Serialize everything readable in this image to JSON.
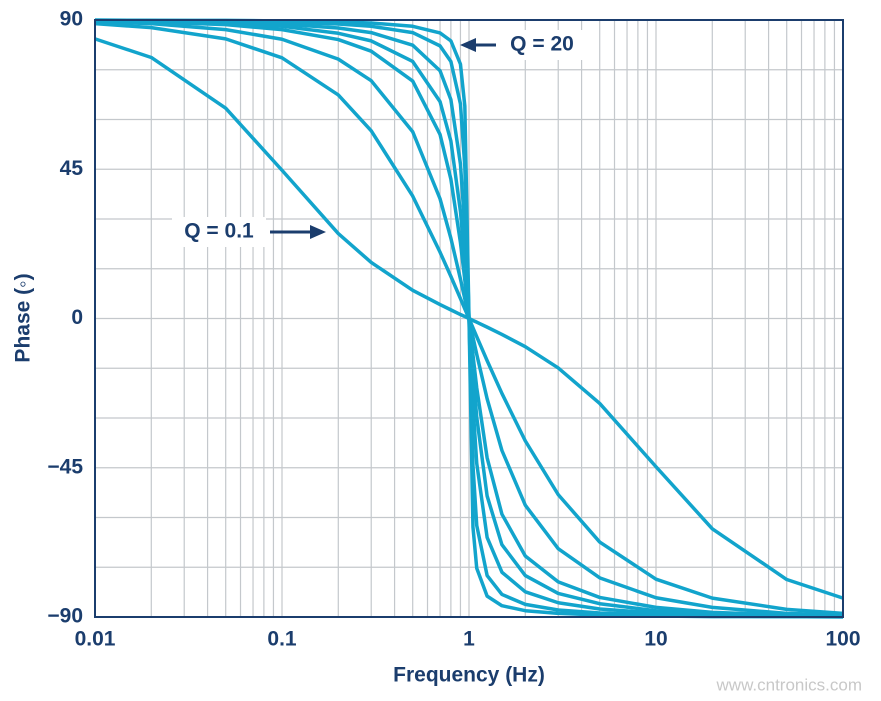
{
  "chart_data": {
    "type": "line",
    "xlabel": "Frequency (Hz)",
    "ylabel": "Phase (◦)",
    "log_x": true,
    "grid": true,
    "color": "#12a4cc",
    "x": [
      0.01,
      0.02,
      0.05,
      0.1,
      0.2,
      0.3,
      0.5,
      0.7,
      0.8,
      0.9,
      0.95,
      1,
      1.05,
      1.1,
      1.25,
      1.5,
      2,
      3,
      5,
      10,
      20,
      50,
      100
    ],
    "series": [
      {
        "color": "#12a4cc",
        "values": [
          84.3,
          78.7,
          63.4,
          44.7,
          25.6,
          16.9,
          8.5,
          4.2,
          2.6,
          1.2,
          0.6,
          0,
          -0.6,
          -1.1,
          -2.6,
          -4.8,
          -8.5,
          -14.9,
          -25.6,
          -44.7,
          -63.4,
          -78.7,
          -84.3
        ]
      },
      {
        "color": "#12a4cc",
        "values": [
          88.9,
          87.7,
          84.3,
          78.6,
          67.4,
          56.6,
          36.9,
          20.0,
          12.7,
          6.0,
          2.9,
          0,
          -2.8,
          -5.5,
          -12.7,
          -22.6,
          -36.9,
          -53.1,
          -67.4,
          -78.6,
          -84.3,
          -87.7,
          -88.9
        ]
      },
      {
        "color": "#12a4cc",
        "values": [
          89.4,
          88.9,
          87.1,
          84.2,
          78.2,
          71.7,
          56.3,
          36.1,
          24.2,
          11.9,
          5.9,
          0,
          -5.6,
          -10.8,
          -24.2,
          -39.8,
          -56.3,
          -69.4,
          -78.2,
          -84.2,
          -87.1,
          -88.9,
          -89.4
        ]
      },
      {
        "color": "#12a4cc",
        "values": [
          89.7,
          89.4,
          88.6,
          87.1,
          84.1,
          80.6,
          71.6,
          55.5,
          42.0,
          22.9,
          11.6,
          0,
          -11.0,
          -20.9,
          -42.0,
          -59.0,
          -71.6,
          -79.4,
          -84.1,
          -87.1,
          -88.6,
          -89.4,
          -89.7
        ]
      },
      {
        "color": "#12a4cc",
        "values": [
          89.8,
          89.6,
          89.0,
          88.1,
          86.0,
          83.7,
          77.5,
          65.4,
          53.5,
          32.3,
          17.1,
          0,
          -16.3,
          -29.8,
          -53.5,
          -68.2,
          -77.5,
          -82.9,
          -86.0,
          -88.1,
          -89.0,
          -89.6,
          -89.8
        ]
      },
      {
        "color": "#12a4cc",
        "values": [
          89.9,
          89.8,
          89.4,
          88.8,
          87.6,
          86.2,
          82.4,
          74.7,
          66.0,
          46.6,
          27.2,
          0,
          -26.0,
          -43.7,
          -66.0,
          -76.5,
          -82.4,
          -85.7,
          -87.6,
          -88.8,
          -89.4,
          -89.8,
          -89.9
        ]
      },
      {
        "color": "#12a4cc",
        "values": [
          89.9,
          89.9,
          89.7,
          89.4,
          88.8,
          88.1,
          86.2,
          82.2,
          77.5,
          64.7,
          45.7,
          0,
          -44.3,
          -62.4,
          -77.5,
          -83.2,
          -86.2,
          -87.9,
          -88.8,
          -89.4,
          -89.7,
          -89.9,
          -89.9
        ]
      },
      {
        "color": "#12a4cc",
        "values": [
          90.0,
          89.9,
          89.9,
          89.7,
          89.4,
          89.1,
          88.1,
          86.1,
          83.7,
          76.7,
          64.0,
          0,
          -62.9,
          -75.3,
          -83.7,
          -86.6,
          -88.1,
          -88.9,
          -89.4,
          -89.7,
          -89.9,
          -89.9,
          -90.0
        ]
      }
    ],
    "xlim": [
      0.01,
      100
    ],
    "xticks": [
      0.01,
      0.1,
      1,
      10,
      100
    ],
    "xminor": [
      0.02,
      0.03,
      0.04,
      0.05,
      0.06,
      0.07,
      0.08,
      0.09,
      0.2,
      0.3,
      0.4,
      0.5,
      0.6,
      0.7,
      0.8,
      0.9,
      2,
      3,
      4,
      5,
      6,
      7,
      8,
      9,
      20,
      30,
      40,
      50,
      60,
      70,
      80,
      90
    ],
    "ylim": [
      -90,
      90
    ],
    "yticks": [
      90,
      45,
      0,
      {
        "value": -45,
        "label": "−45"
      },
      {
        "value": -90,
        "label": "−90"
      }
    ],
    "yminor": [
      75,
      60,
      30,
      15,
      -15,
      -30,
      -60,
      -75
    ],
    "annotations": [
      "Q = 0.1",
      "Q = 20"
    ],
    "watermark": "www.cntronics.com"
  }
}
